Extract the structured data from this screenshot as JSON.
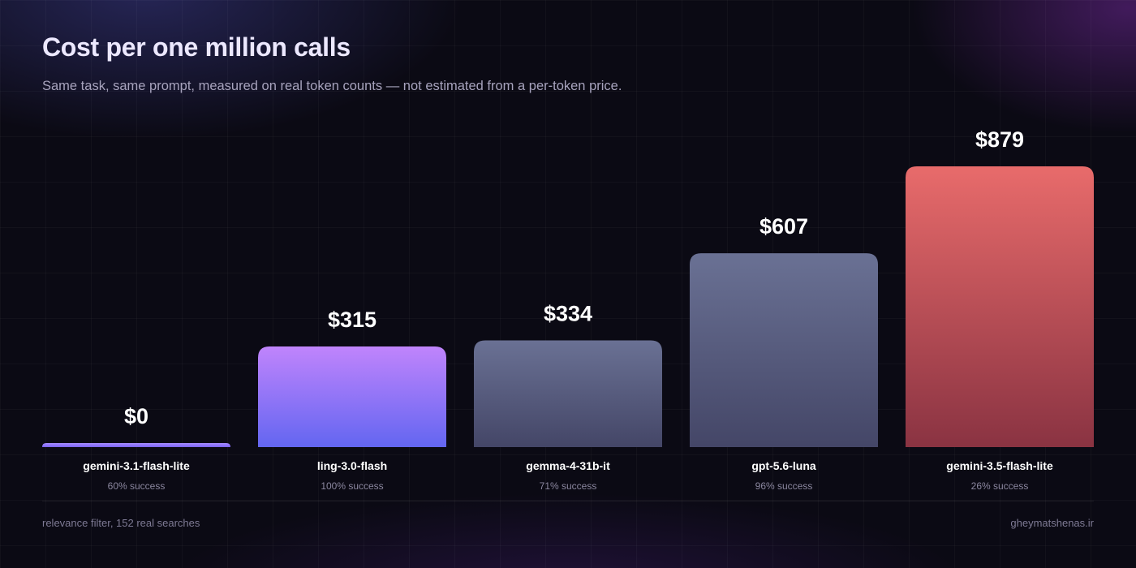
{
  "header": {
    "title": "Cost per one million calls",
    "subtitle": "Same task, same prompt, measured on real token counts — not estimated from a per-token price."
  },
  "footer": {
    "left": "relevance filter, 152 real searches",
    "right": "gheymatshenas.ir"
  },
  "chart_data": {
    "type": "bar",
    "title": "Cost per one million calls",
    "categories": [
      "gemini-3.1-flash-lite",
      "ling-3.0-flash",
      "gemma-4-31b-it",
      "gpt-5.6-luna",
      "gemini-3.5-flash-lite"
    ],
    "values": [
      0,
      315,
      334,
      607,
      879
    ],
    "value_labels": [
      "$0",
      "$315",
      "$334",
      "$607",
      "$879"
    ],
    "success_labels": [
      "60% success",
      "100% success",
      "71% success",
      "96% success",
      "26% success"
    ],
    "ylim": [
      0,
      879
    ],
    "grid": true,
    "legend": "none",
    "bar_colors": [
      [
        "#a58bff",
        "#7b63f5"
      ],
      [
        "#c084fc",
        "#6366f1"
      ],
      [
        "#6a7194",
        "#444667"
      ],
      [
        "#6a7194",
        "#444667"
      ],
      [
        "#e86b6b",
        "#8a3342"
      ]
    ]
  }
}
